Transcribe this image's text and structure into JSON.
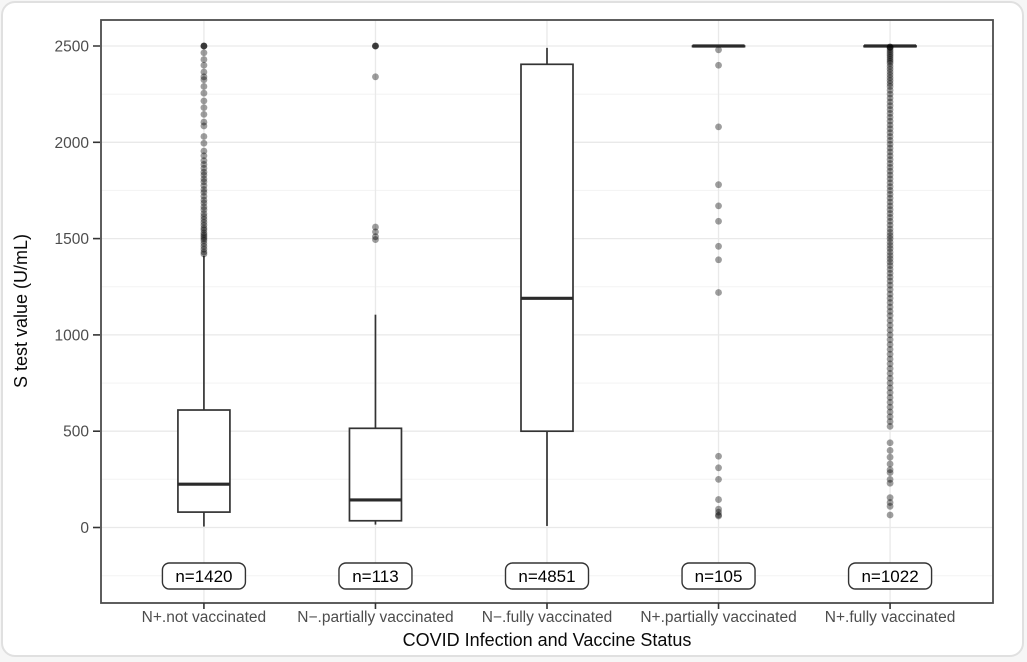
{
  "page": {
    "background": "#ffffff",
    "card_border_color": "#e0e0e0"
  },
  "chart_data": {
    "type": "boxplot",
    "title": "",
    "xlabel": "COVID Infection and Vaccine Status",
    "ylabel": "S test value (U/mL)",
    "legend": "none",
    "grid": "on",
    "y_ticks": [
      0,
      500,
      1000,
      1500,
      2000,
      2500
    ],
    "y_minor_ticks": [
      -250,
      250,
      750,
      1250,
      1750,
      2250
    ],
    "y_axis_domain": [
      -392,
      2635
    ],
    "ylim_data": [
      0,
      2500
    ],
    "categories": [
      {
        "label": "N+.not vaccinated",
        "n_label": "n=1420",
        "stats": {
          "min": 5,
          "q1": 80,
          "median": 225,
          "q3": 610,
          "max": 1410
        },
        "points": [
          2500,
          2500,
          2500,
          2465,
          2430,
          2400,
          2365,
          2340,
          2325,
          2290,
          2255,
          2215,
          2180,
          2145,
          2105,
          2085,
          2030,
          1995,
          1955,
          1930,
          1905,
          1885,
          1865,
          1845,
          1830,
          1810,
          1795,
          1775,
          1755,
          1740,
          1720,
          1700,
          1685,
          1665,
          1650,
          1630,
          1615,
          1600,
          1585,
          1570,
          1555,
          1545,
          1530,
          1520,
          1510,
          1500,
          1490,
          1475,
          1460,
          1445,
          1430,
          1420
        ]
      },
      {
        "label": "N−.partially vaccinated",
        "n_label": "n=113",
        "stats": {
          "min": 15,
          "q1": 35,
          "median": 143,
          "q3": 515,
          "max": 1105
        },
        "points": [
          2500,
          2500,
          2500,
          2340,
          1560,
          1535,
          1510,
          1495
        ]
      },
      {
        "label": "N−.fully vaccinated",
        "n_label": "n=4851",
        "stats": {
          "min": 8,
          "q1": 500,
          "median": 1190,
          "q3": 2405,
          "max": 2490
        },
        "points": []
      },
      {
        "label": "N+.partially vaccinated",
        "n_label": "n=105",
        "stats": {
          "min": 2500,
          "q1": 2500,
          "median": 2500,
          "q3": 2500,
          "max": 2500
        },
        "points": [
          2480,
          2400,
          2080,
          1780,
          1670,
          1590,
          1460,
          1390,
          1220,
          370,
          310,
          250,
          145,
          95,
          80,
          65,
          60
        ]
      },
      {
        "label": "N+.fully vaccinated",
        "n_label": "n=1022",
        "stats": {
          "min": 2500,
          "q1": 2500,
          "median": 2500,
          "q3": 2500,
          "max": 2500
        },
        "points": [
          2495,
          2495,
          2490,
          2480,
          2470,
          2460,
          2450,
          2440,
          2430,
          2420,
          2410,
          2395,
          2380,
          2365,
          2350,
          2335,
          2320,
          2305,
          2290,
          2270,
          2250,
          2230,
          2210,
          2190,
          2170,
          2150,
          2130,
          2110,
          2090,
          2070,
          2050,
          2030,
          2010,
          1990,
          1970,
          1950,
          1930,
          1910,
          1890,
          1870,
          1850,
          1830,
          1810,
          1790,
          1770,
          1750,
          1730,
          1710,
          1690,
          1670,
          1650,
          1630,
          1610,
          1590,
          1570,
          1550,
          1532,
          1515,
          1500,
          1482,
          1465,
          1448,
          1430,
          1412,
          1395,
          1378,
          1360,
          1340,
          1320,
          1300,
          1280,
          1258,
          1235,
          1212,
          1190,
          1168,
          1145,
          1122,
          1100,
          1075,
          1050,
          1025,
          1000,
          975,
          950,
          925,
          900,
          875,
          850,
          825,
          800,
          775,
          750,
          725,
          700,
          675,
          650,
          625,
          600,
          575,
          550,
          525,
          440,
          400,
          365,
          330,
          300,
          285,
          250,
          230,
          155,
          130,
          110,
          65
        ]
      }
    ],
    "colors": {
      "box_stroke": "#333333",
      "median": "#2a2a2a",
      "point": "#000000",
      "point_opacity": "0.38",
      "grid_major": "#e9e9e9",
      "grid_minor": "#f4f4f4",
      "panel_border": "#4d4d4d",
      "tick": "#333333",
      "tick_label": "#4d4d4d",
      "axis_title": "#0a0a0a",
      "n_label_border": "#333333",
      "n_label_text": "#000000"
    }
  }
}
